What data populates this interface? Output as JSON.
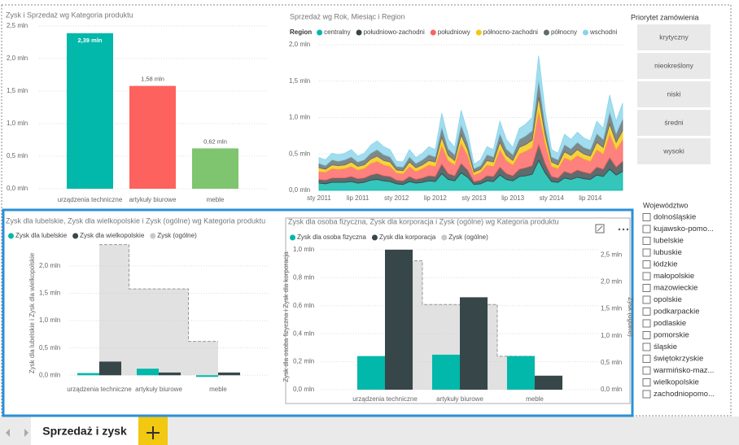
{
  "chart_data": [
    {
      "type": "bar",
      "title": "Zysk i Sprzedaż wg Kategoria produktu",
      "categories": [
        "urządzenia techniczne",
        "artykuły biurowe",
        "meble"
      ],
      "values": [
        2.39,
        1.58,
        0.62
      ],
      "value_labels": [
        "2,39 mln",
        "1,58 mln",
        "0,62 mln"
      ],
      "colors": [
        "#01b8aa",
        "#fd625e",
        "#7fc46e"
      ],
      "ylim": [
        0,
        2.5
      ],
      "yticks": [
        {
          "value": 0,
          "label": "0,0 mln"
        },
        {
          "value": 0.5,
          "label": "0,5 mln"
        },
        {
          "value": 1,
          "label": "1,0 mln"
        },
        {
          "value": 1.5,
          "label": "1,5 mln"
        },
        {
          "value": 2,
          "label": "2,0 mln"
        },
        {
          "value": 2.5,
          "label": "2,5 mln"
        }
      ],
      "grid": true
    },
    {
      "type": "stacked_area",
      "title": "Sprzedaż wg Rok, Miesiąc i Region",
      "legend_title": "Region",
      "categories": [
        "sty 2011",
        null,
        null,
        null,
        null,
        null,
        "lip 2011",
        null,
        null,
        null,
        null,
        null,
        "sty 2012",
        null,
        null,
        null,
        null,
        null,
        "lip 2012",
        null,
        null,
        null,
        null,
        null,
        "sty 2013",
        null,
        null,
        null,
        null,
        null,
        "lip 2013",
        null,
        null,
        null,
        null,
        null,
        "sty 2014",
        null,
        null,
        null,
        null,
        null,
        "lip 2014",
        null,
        null,
        null,
        null,
        null
      ],
      "series": [
        {
          "name": "centralny",
          "color": "#01b8aa",
          "values": [
            0.1,
            0.09,
            0.11,
            0.11,
            0.11,
            0.12,
            0.1,
            0.11,
            0.14,
            0.15,
            0.13,
            0.12,
            0.09,
            0.08,
            0.12,
            0.1,
            0.11,
            0.13,
            0.12,
            0.23,
            0.15,
            0.13,
            0.24,
            0.18,
            0.08,
            0.09,
            0.13,
            0.12,
            0.21,
            0.15,
            0.13,
            0.19,
            0.2,
            0.22,
            0.41,
            0.24,
            0.12,
            0.11,
            0.17,
            0.15,
            0.18,
            0.16,
            0.15,
            0.21,
            0.19,
            0.29,
            0.21,
            0.26
          ]
        },
        {
          "name": "południowo-zachodni",
          "color": "#374649",
          "values": [
            0.05,
            0.05,
            0.06,
            0.06,
            0.06,
            0.07,
            0.06,
            0.06,
            0.07,
            0.08,
            0.07,
            0.07,
            0.05,
            0.05,
            0.07,
            0.05,
            0.06,
            0.07,
            0.07,
            0.13,
            0.08,
            0.07,
            0.13,
            0.1,
            0.04,
            0.05,
            0.07,
            0.07,
            0.11,
            0.08,
            0.07,
            0.1,
            0.11,
            0.12,
            0.22,
            0.13,
            0.07,
            0.06,
            0.09,
            0.08,
            0.1,
            0.09,
            0.08,
            0.11,
            0.1,
            0.16,
            0.11,
            0.14
          ]
        },
        {
          "name": "południowy",
          "color": "#fd625e",
          "values": [
            0.11,
            0.11,
            0.13,
            0.12,
            0.13,
            0.14,
            0.12,
            0.13,
            0.16,
            0.17,
            0.15,
            0.14,
            0.1,
            0.1,
            0.14,
            0.11,
            0.13,
            0.15,
            0.14,
            0.26,
            0.18,
            0.15,
            0.28,
            0.2,
            0.09,
            0.11,
            0.15,
            0.14,
            0.24,
            0.18,
            0.15,
            0.21,
            0.23,
            0.25,
            0.46,
            0.28,
            0.14,
            0.13,
            0.19,
            0.18,
            0.2,
            0.18,
            0.17,
            0.24,
            0.21,
            0.33,
            0.24,
            0.3
          ]
        },
        {
          "name": "północno-zachodni",
          "color": "#f2c80f",
          "values": [
            0.05,
            0.04,
            0.05,
            0.05,
            0.05,
            0.06,
            0.05,
            0.05,
            0.06,
            0.07,
            0.06,
            0.06,
            0.04,
            0.04,
            0.06,
            0.05,
            0.05,
            0.06,
            0.06,
            0.11,
            0.07,
            0.06,
            0.11,
            0.08,
            0.04,
            0.04,
            0.06,
            0.06,
            0.1,
            0.07,
            0.06,
            0.09,
            0.09,
            0.1,
            0.19,
            0.11,
            0.06,
            0.05,
            0.08,
            0.07,
            0.08,
            0.07,
            0.07,
            0.1,
            0.09,
            0.13,
            0.1,
            0.12
          ]
        },
        {
          "name": "północny",
          "color": "#5f6b6d",
          "values": [
            0.06,
            0.05,
            0.07,
            0.06,
            0.07,
            0.07,
            0.06,
            0.07,
            0.08,
            0.09,
            0.08,
            0.07,
            0.05,
            0.05,
            0.07,
            0.06,
            0.07,
            0.08,
            0.07,
            0.14,
            0.09,
            0.08,
            0.14,
            0.1,
            0.05,
            0.05,
            0.08,
            0.07,
            0.12,
            0.09,
            0.08,
            0.11,
            0.12,
            0.13,
            0.24,
            0.14,
            0.07,
            0.07,
            0.1,
            0.09,
            0.1,
            0.09,
            0.09,
            0.12,
            0.11,
            0.17,
            0.12,
            0.16
          ]
        },
        {
          "name": "wschodni",
          "color": "#8ad4eb",
          "values": [
            0.08,
            0.08,
            0.09,
            0.09,
            0.09,
            0.1,
            0.08,
            0.09,
            0.11,
            0.12,
            0.11,
            0.1,
            0.07,
            0.07,
            0.1,
            0.08,
            0.09,
            0.11,
            0.1,
            0.19,
            0.13,
            0.1,
            0.2,
            0.14,
            0.06,
            0.08,
            0.11,
            0.1,
            0.17,
            0.13,
            0.1,
            0.15,
            0.16,
            0.18,
            0.33,
            0.2,
            0.1,
            0.09,
            0.14,
            0.13,
            0.14,
            0.13,
            0.12,
            0.17,
            0.15,
            0.23,
            0.17,
            0.22
          ]
        }
      ],
      "ylim": [
        0,
        2.0
      ],
      "yticks": [
        {
          "value": 0,
          "label": "0,0 mln"
        },
        {
          "value": 0.5,
          "label": "0,5 mln"
        },
        {
          "value": 1,
          "label": "1,0 mln"
        },
        {
          "value": 1.5,
          "label": "1,5 mln"
        },
        {
          "value": 2,
          "label": "2,0 mln"
        }
      ],
      "grid": true
    },
    {
      "type": "combo",
      "title": "Zysk dla lubelskie, Zysk dla wielkopolskie i Zysk (ogólne) wg Kategoria produktu",
      "y_label": "Zysk dla lubelskie i Zysk dla wielkopolskie",
      "categories": [
        "urządzenia techniczne",
        "artykuły biurowe",
        "meble"
      ],
      "series": [
        {
          "name": "Zysk dla lubelskie",
          "color": "#01b8aa",
          "kind": "bar",
          "values": [
            0.04,
            0.12,
            -0.03
          ]
        },
        {
          "name": "Zysk dla wielkopolskie",
          "color": "#374649",
          "kind": "bar",
          "values": [
            0.25,
            0.05,
            0.05
          ]
        },
        {
          "name": "Zysk (ogólne)",
          "color": "#c8c8c8",
          "kind": "step_area",
          "values": [
            2.39,
            1.58,
            0.62
          ]
        }
      ],
      "ylim": [
        -0.13,
        2.4
      ],
      "yticks": [
        {
          "value": 0,
          "label": "0,0 mln"
        },
        {
          "value": 0.5,
          "label": "0,5 mln"
        },
        {
          "value": 1,
          "label": "1,0 mln"
        },
        {
          "value": 1.5,
          "label": "1,5 mln"
        },
        {
          "value": 2,
          "label": "2,0 mln"
        }
      ],
      "grid": true
    },
    {
      "type": "combo",
      "title": "Zysk dla osoba fizyczna, Zysk dla korporacja i Zysk (ogólne) wg Kategoria produktu",
      "y_label": "Zysk dla osoba fizyczna i Zysk dla korporacja",
      "y2_label": "Zysk (ogólne)",
      "categories": [
        "urządzenia techniczne",
        "artykuły biurowe",
        "meble"
      ],
      "series": [
        {
          "name": "Zysk dla osoba fizyczna",
          "color": "#01b8aa",
          "kind": "bar",
          "values": [
            0.24,
            0.25,
            0.24
          ]
        },
        {
          "name": "Zysk dla korporacja",
          "color": "#374649",
          "kind": "bar",
          "values": [
            1.0,
            0.66,
            0.1
          ]
        },
        {
          "name": "Zysk (ogólne)",
          "color": "#c8c8c8",
          "kind": "step_area",
          "axis": "y2",
          "values": [
            2.39,
            1.58,
            0.62
          ]
        }
      ],
      "ylim": [
        0,
        1.04
      ],
      "yticks": [
        {
          "value": 0,
          "label": "0,0 mln"
        },
        {
          "value": 0.2,
          "label": "0,2 mln"
        },
        {
          "value": 0.4,
          "label": "0,4 mln"
        },
        {
          "value": 0.6,
          "label": "0,6 mln"
        },
        {
          "value": 0.8,
          "label": "0,8 mln"
        },
        {
          "value": 1,
          "label": "1,0 mln"
        }
      ],
      "y2lim": [
        0,
        2.7
      ],
      "y2ticks": [
        {
          "value": 0,
          "label": "0,0 mln"
        },
        {
          "value": 0.5,
          "label": "0,5 mln"
        },
        {
          "value": 1,
          "label": "1,0 mln"
        },
        {
          "value": 1.5,
          "label": "1,5 mln"
        },
        {
          "value": 2,
          "label": "2,0 mln"
        },
        {
          "value": 2.5,
          "label": "2,5 mln"
        }
      ],
      "grid": true
    }
  ],
  "slicers": [
    {
      "title": "Priorytet zamówienia",
      "style": "buttons",
      "items": [
        "krytyczny",
        "nieokreślony",
        "niski",
        "średni",
        "wysoki"
      ]
    },
    {
      "title": "Województwo",
      "style": "checkboxes",
      "items": [
        "dolnośląskie",
        "kujawsko-pomo...",
        "lubelskie",
        "lubuskie",
        "łódzkie",
        "małopolskie",
        "mazowieckie",
        "opolskie",
        "podkarpackie",
        "podlaskie",
        "pomorskie",
        "śląskie",
        "świętokrzyskie",
        "warmińsko-maz...",
        "wielkopolskie",
        "zachodniopomo..."
      ]
    }
  ],
  "tabs": [
    "Sprzedaż i zysk"
  ]
}
